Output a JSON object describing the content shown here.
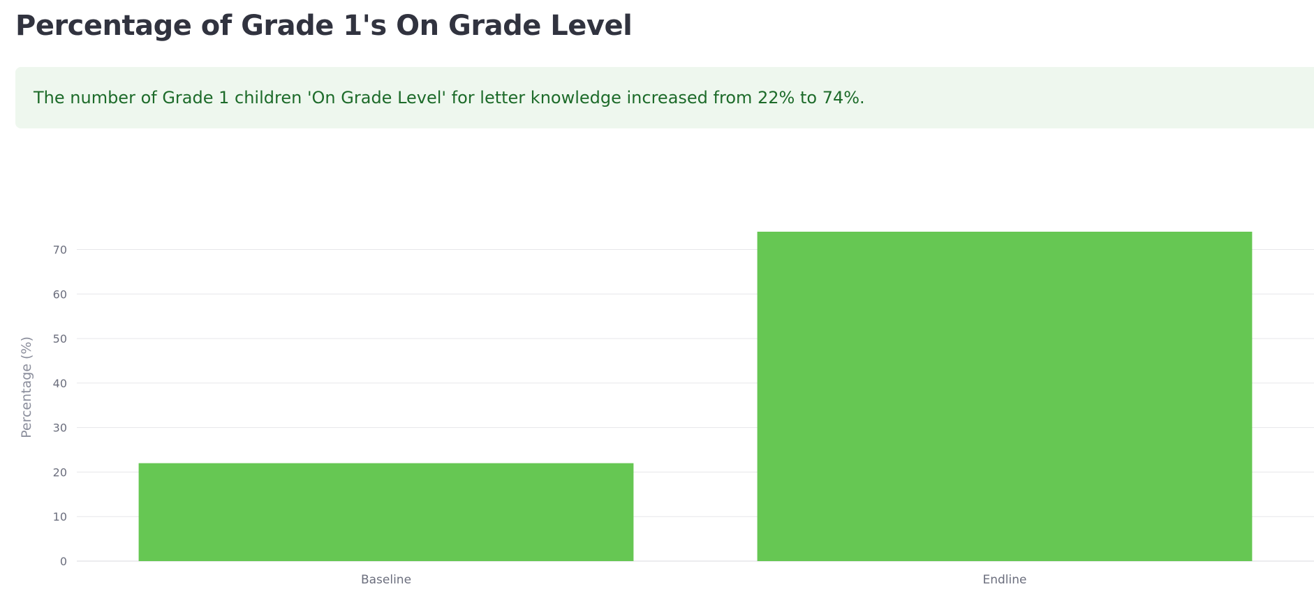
{
  "page": {
    "title": "Percentage of Grade 1's On Grade Level",
    "alert_text": "The number of Grade 1 children 'On Grade Level' for letter knowledge increased from 22% to 74%."
  },
  "colors": {
    "bar": "#66c753",
    "grid": "#e6e6ea",
    "alert_bg": "#eef7ee",
    "alert_text": "#1d6b2a"
  },
  "chart_data": {
    "type": "bar",
    "categories": [
      "Baseline",
      "Endline"
    ],
    "values": [
      22,
      74
    ],
    "title": "",
    "xlabel": "",
    "ylabel": "Percentage (%)",
    "ylim": [
      0,
      74
    ],
    "yticks": [
      0,
      10,
      20,
      30,
      40,
      50,
      60,
      70
    ],
    "grid": true,
    "legend": "none"
  }
}
